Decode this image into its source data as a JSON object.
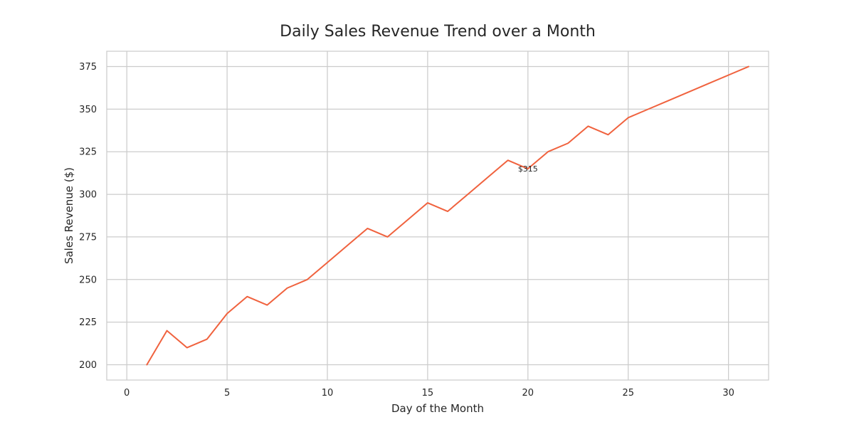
{
  "chart_data": {
    "type": "line",
    "title": "Daily Sales Revenue Trend over a Month",
    "xlabel": "Day of the Month",
    "ylabel": "Sales Revenue ($)",
    "xlim": [
      -1,
      32
    ],
    "ylim": [
      191,
      384
    ],
    "x_ticks": [
      0,
      5,
      10,
      15,
      20,
      25,
      30
    ],
    "y_ticks": [
      200,
      225,
      250,
      275,
      300,
      325,
      350,
      375
    ],
    "x_tick_labels": [
      "0",
      "5",
      "10",
      "15",
      "20",
      "25",
      "30"
    ],
    "y_tick_labels": [
      "200",
      "225",
      "250",
      "275",
      "300",
      "325",
      "350",
      "375"
    ],
    "grid": true,
    "series": [
      {
        "name": "Sales Revenue",
        "color": "#f0623e",
        "x": [
          1,
          2,
          3,
          4,
          5,
          6,
          7,
          8,
          9,
          10,
          11,
          12,
          13,
          14,
          15,
          16,
          17,
          18,
          19,
          20,
          21,
          22,
          23,
          24,
          25,
          26,
          27,
          28,
          29,
          30,
          31
        ],
        "values": [
          200,
          220,
          210,
          215,
          230,
          240,
          235,
          245,
          250,
          260,
          270,
          280,
          275,
          285,
          295,
          290,
          300,
          310,
          320,
          315,
          325,
          330,
          340,
          335,
          345,
          350,
          355,
          360,
          365,
          370,
          375
        ]
      }
    ],
    "annotations": [
      {
        "text": "$315",
        "x": 20,
        "y": 315
      }
    ],
    "colors": {
      "grid": "#cccccc",
      "spine": "#cccccc",
      "text": "#262626"
    }
  }
}
